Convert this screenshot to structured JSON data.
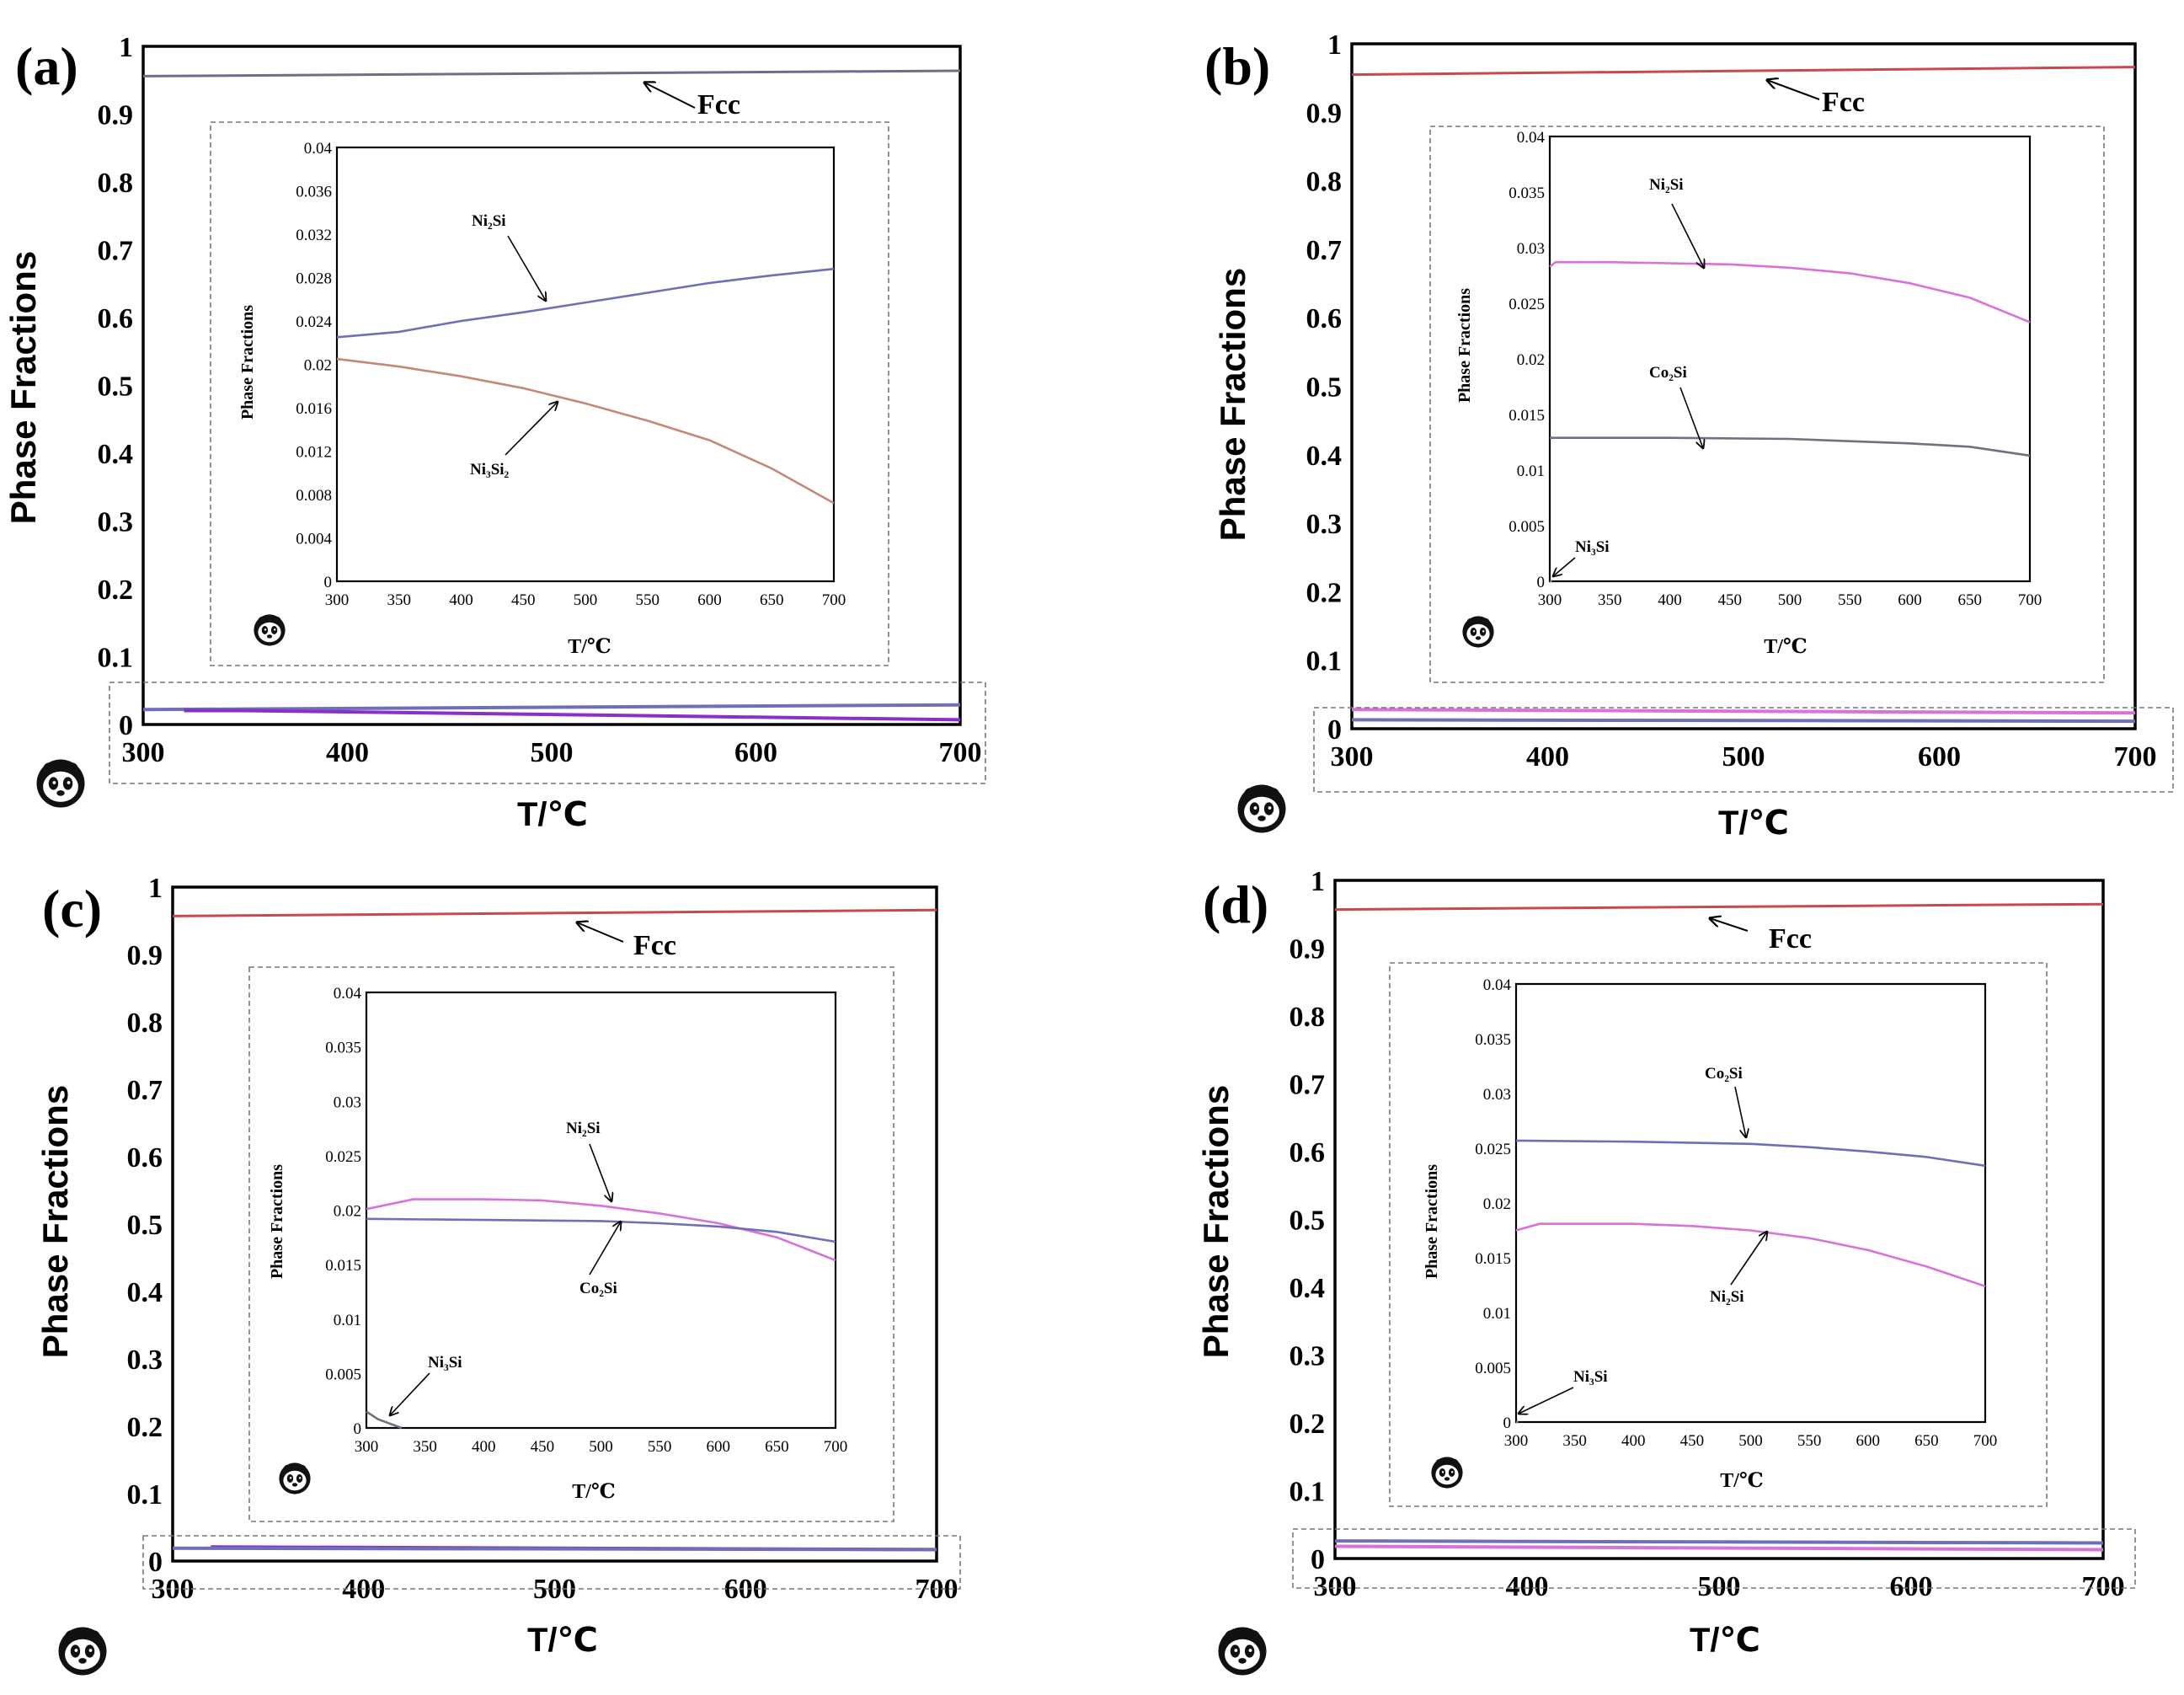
{
  "figure": {
    "axis_label_y": "Phase Fractions",
    "axis_label_x": "T/℃",
    "logo_icon": "panda-logo-icon"
  },
  "colors": {
    "fcc": "#c8484e",
    "fcc_a": "#6e6e8a",
    "blue": "#6f6fb8",
    "pink": "#d872d8",
    "brown": "#c48878",
    "gray": "#707080",
    "purple": "#8a2fc8",
    "axis": "#000000",
    "dash": "#777777"
  },
  "chart_data": [
    {
      "panel_label": "(a)",
      "type": "line",
      "xlabel": "T/℃",
      "ylabel": "Phase Fractions",
      "xlim": [
        300,
        700
      ],
      "ylim": [
        0,
        1
      ],
      "x_ticks": [
        "300",
        "400",
        "500",
        "600",
        "700"
      ],
      "y_ticks": [
        "0",
        "0.1",
        "0.2",
        "0.3",
        "0.4",
        "0.5",
        "0.6",
        "0.7",
        "0.8",
        "0.9",
        "1"
      ],
      "series": [
        {
          "name": "Fcc",
          "label": "Fcc",
          "color": "fcc_a",
          "x": [
            300,
            700
          ],
          "y": [
            0.956,
            0.964
          ]
        },
        {
          "name": "Ni2Si",
          "label": "",
          "color": "blue",
          "x": [
            300,
            700
          ],
          "y": [
            0.022,
            0.029
          ]
        },
        {
          "name": "Ni3Si2",
          "label": "",
          "color": "purple",
          "x": [
            320,
            350,
            700
          ],
          "y": [
            0.0205,
            0.0205,
            0.007
          ]
        }
      ],
      "inset": {
        "xlabel": "T/℃",
        "ylabel": "Phase Fractions",
        "xlim": [
          300,
          700
        ],
        "ylim": [
          0,
          0.04
        ],
        "x_ticks": [
          "300",
          "350",
          "400",
          "450",
          "500",
          "550",
          "600",
          "650",
          "700"
        ],
        "y_ticks": [
          "0",
          "0.004",
          "0.008",
          "0.012",
          "0.016",
          "0.02",
          "0.024",
          "0.028",
          "0.032",
          "0.036",
          "0.04"
        ],
        "series": [
          {
            "name": "Ni2Si",
            "label": "Ni₂Si",
            "color": "blue",
            "x": [
              300,
              350,
              400,
              450,
              500,
              550,
              600,
              650,
              700
            ],
            "y": [
              0.0225,
              0.023,
              0.024,
              0.0248,
              0.0257,
              0.0266,
              0.0275,
              0.0282,
              0.0288
            ]
          },
          {
            "name": "Ni3Si2",
            "label": "Ni₃Si₂",
            "color": "brown",
            "x": [
              300,
              350,
              400,
              450,
              500,
              550,
              600,
              650,
              700
            ],
            "y": [
              0.0205,
              0.0198,
              0.0189,
              0.0178,
              0.0164,
              0.0148,
              0.013,
              0.0104,
              0.0072
            ]
          }
        ]
      }
    },
    {
      "panel_label": "(b)",
      "type": "line",
      "xlabel": "T/℃",
      "ylabel": "Phase Fractions",
      "xlim": [
        300,
        700
      ],
      "ylim": [
        0,
        1
      ],
      "x_ticks": [
        "300",
        "400",
        "500",
        "600",
        "700"
      ],
      "y_ticks": [
        "0",
        "0.1",
        "0.2",
        "0.3",
        "0.4",
        "0.5",
        "0.6",
        "0.7",
        "0.8",
        "0.9",
        "1"
      ],
      "series": [
        {
          "name": "Fcc",
          "label": "Fcc",
          "color": "fcc",
          "x": [
            300,
            700
          ],
          "y": [
            0.955,
            0.966
          ]
        },
        {
          "name": "Ni2Si",
          "label": "",
          "color": "pink",
          "x": [
            300,
            700
          ],
          "y": [
            0.028,
            0.023
          ]
        },
        {
          "name": "Co2Si",
          "label": "",
          "color": "blue",
          "x": [
            300,
            700
          ],
          "y": [
            0.013,
            0.011
          ]
        }
      ],
      "inset": {
        "xlabel": "T/℃",
        "ylabel": "Phase Fractions",
        "xlim": [
          300,
          700
        ],
        "ylim": [
          0,
          0.04
        ],
        "x_ticks": [
          "300",
          "350",
          "400",
          "450",
          "500",
          "550",
          "600",
          "650",
          "700"
        ],
        "y_ticks": [
          "0",
          "0.005",
          "0.01",
          "0.015",
          "0.02",
          "0.025",
          "0.03",
          "0.035",
          "0.04"
        ],
        "series": [
          {
            "name": "Ni2Si",
            "label": "Ni₂Si",
            "color": "pink",
            "x": [
              300,
              305,
              350,
              400,
              450,
              500,
              550,
              600,
              650,
              700
            ],
            "y": [
              0.0283,
              0.0287,
              0.0287,
              0.0286,
              0.0285,
              0.0282,
              0.0277,
              0.0268,
              0.0255,
              0.0233
            ]
          },
          {
            "name": "Co2Si",
            "label": "Co₂Si",
            "color": "gray",
            "x": [
              300,
              400,
              500,
              600,
              650,
              700
            ],
            "y": [
              0.0129,
              0.0129,
              0.0128,
              0.0124,
              0.0121,
              0.0113
            ]
          },
          {
            "name": "Ni3Si",
            "label": "Ni₃Si",
            "color": "gray",
            "x": [
              300,
              302
            ],
            "y": [
              0.0,
              0.0
            ]
          }
        ]
      }
    },
    {
      "panel_label": "(c)",
      "type": "line",
      "xlabel": "T/℃",
      "ylabel": "Phase Fractions",
      "xlim": [
        300,
        700
      ],
      "ylim": [
        0,
        1
      ],
      "x_ticks": [
        "300",
        "400",
        "500",
        "600",
        "700"
      ],
      "y_ticks": [
        "0",
        "0.1",
        "0.2",
        "0.3",
        "0.4",
        "0.5",
        "0.6",
        "0.7",
        "0.8",
        "0.9",
        "1"
      ],
      "series": [
        {
          "name": "Fcc",
          "label": "Fcc",
          "color": "fcc",
          "x": [
            300,
            700
          ],
          "y": [
            0.957,
            0.966
          ]
        },
        {
          "name": "Ni2Si",
          "label": "",
          "color": "purple",
          "x": [
            320,
            700
          ],
          "y": [
            0.021,
            0.017
          ]
        },
        {
          "name": "Co2Si",
          "label": "",
          "color": "blue",
          "x": [
            300,
            700
          ],
          "y": [
            0.019,
            0.017
          ]
        }
      ],
      "inset": {
        "xlabel": "T/℃",
        "ylabel": "Phase Fractions",
        "xlim": [
          300,
          700
        ],
        "ylim": [
          0,
          0.04
        ],
        "x_ticks": [
          "300",
          "350",
          "400",
          "450",
          "500",
          "550",
          "600",
          "650",
          "700"
        ],
        "y_ticks": [
          "0",
          "0.005",
          "0.01",
          "0.015",
          "0.02",
          "0.025",
          "0.03",
          "0.035",
          "0.04"
        ],
        "series": [
          {
            "name": "Ni2Si",
            "label": "Ni₂Si",
            "color": "pink",
            "x": [
              300,
              340,
              400,
              450,
              500,
              550,
              600,
              650,
              700
            ],
            "y": [
              0.0201,
              0.021,
              0.021,
              0.0209,
              0.0204,
              0.0197,
              0.0188,
              0.0175,
              0.0154
            ]
          },
          {
            "name": "Co2Si",
            "label": "Co₂Si",
            "color": "blue",
            "x": [
              300,
              400,
              500,
              550,
              600,
              650,
              700
            ],
            "y": [
              0.0192,
              0.0191,
              0.019,
              0.0188,
              0.0185,
              0.018,
              0.0171
            ]
          },
          {
            "name": "Ni3Si",
            "label": "Ni₃Si",
            "color": "gray",
            "x": [
              300,
              310,
              330
            ],
            "y": [
              0.0015,
              0.0008,
              0.0
            ]
          }
        ]
      }
    },
    {
      "panel_label": "(d)",
      "type": "line",
      "xlabel": "T/℃",
      "ylabel": "Phase Fractions",
      "xlim": [
        300,
        700
      ],
      "ylim": [
        0,
        1
      ],
      "x_ticks": [
        "300",
        "400",
        "500",
        "600",
        "700"
      ],
      "y_ticks": [
        "0",
        "0.1",
        "0.2",
        "0.3",
        "0.4",
        "0.5",
        "0.6",
        "0.7",
        "0.8",
        "0.9",
        "1"
      ],
      "series": [
        {
          "name": "Fcc",
          "label": "Fcc",
          "color": "fcc",
          "x": [
            300,
            700
          ],
          "y": [
            0.957,
            0.965
          ]
        },
        {
          "name": "Co2Si",
          "label": "",
          "color": "blue",
          "x": [
            300,
            700
          ],
          "y": [
            0.026,
            0.023
          ]
        },
        {
          "name": "Ni2Si",
          "label": "",
          "color": "pink",
          "x": [
            300,
            700
          ],
          "y": [
            0.018,
            0.013
          ]
        }
      ],
      "inset": {
        "xlabel": "T/℃",
        "ylabel": "Phase Fractions",
        "xlim": [
          300,
          700
        ],
        "ylim": [
          0,
          0.04
        ],
        "x_ticks": [
          "300",
          "350",
          "400",
          "450",
          "500",
          "550",
          "600",
          "650",
          "700"
        ],
        "y_ticks": [
          "0",
          "0.005",
          "0.01",
          "0.015",
          "0.02",
          "0.025",
          "0.03",
          "0.035",
          "0.04"
        ],
        "series": [
          {
            "name": "Co2Si",
            "label": "Co₂Si",
            "color": "blue",
            "x": [
              300,
              400,
              500,
              550,
              600,
              650,
              700
            ],
            "y": [
              0.0257,
              0.0256,
              0.0254,
              0.0251,
              0.0247,
              0.0242,
              0.0234
            ]
          },
          {
            "name": "Ni2Si",
            "label": "Ni₂Si",
            "color": "pink",
            "x": [
              300,
              320,
              400,
              450,
              500,
              550,
              600,
              650,
              700
            ],
            "y": [
              0.0175,
              0.0181,
              0.0181,
              0.0179,
              0.0175,
              0.0168,
              0.0157,
              0.0142,
              0.0124
            ]
          },
          {
            "name": "Ni3Si",
            "label": "Ni₃Si",
            "color": "gray",
            "x": [
              300,
              302
            ],
            "y": [
              0.0,
              0.0
            ]
          }
        ]
      }
    }
  ]
}
